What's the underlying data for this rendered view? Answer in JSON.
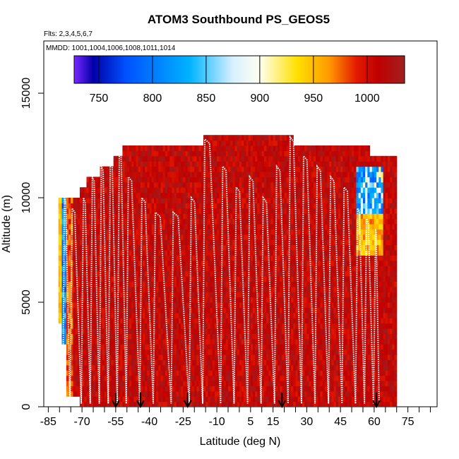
{
  "chart_data": {
    "type": "heatmap",
    "title": "ATOM3 Southbound PS_GEOS5",
    "flights_note": "Flts: 2,3,4,5,6,7",
    "dates_note": "MMDD: 1001,1004,1006,1008,1011,1014",
    "xlabel": "Latitude (deg N)",
    "ylabel": "Altitude (m)",
    "xlim": [
      -87,
      88
    ],
    "ylim": [
      0,
      17500
    ],
    "x_ticks": [
      -85,
      -70,
      -55,
      -40,
      -25,
      -10,
      5,
      15,
      30,
      45,
      60,
      75
    ],
    "x_minor_ticks": [
      -80,
      -75,
      -65,
      -60,
      -50,
      -45,
      -35,
      -30,
      -20,
      -15,
      -5,
      0,
      10,
      20,
      25,
      35,
      40,
      50,
      55,
      65,
      70,
      80,
      85
    ],
    "y_ticks": [
      0,
      5000,
      10000,
      15000
    ],
    "colorbar": {
      "range": [
        727,
        1035
      ],
      "ticks": [
        750,
        800,
        850,
        900,
        950,
        1000
      ],
      "colors": [
        "#7a28ff",
        "#0000a8",
        "#0050ff",
        "#00b4ff",
        "#d8f0ff",
        "#fffff0",
        "#ffe000",
        "#ff9800",
        "#e41a00",
        "#c00000",
        "#a02020"
      ],
      "color_stops": [
        727,
        745,
        775,
        835,
        875,
        900,
        935,
        965,
        990,
        1010,
        1035
      ]
    },
    "surface_pressure_columns": [
      {
        "lat0": -80.5,
        "lat1": -79,
        "z0": 4000,
        "z1": 10000,
        "kind": "edge"
      },
      {
        "lat0": -79,
        "lat1": -77,
        "z0": 3000,
        "z1": 10000,
        "kind": "blue"
      },
      {
        "lat0": -77,
        "lat1": -74,
        "z0": 500,
        "z1": 10000,
        "kind": "warm"
      },
      {
        "lat0": -74,
        "lat1": -71,
        "z0": 500,
        "z1": 10000,
        "kind": "red"
      },
      {
        "lat0": -71,
        "lat1": -68,
        "z0": 0,
        "z1": 10500,
        "kind": "red"
      },
      {
        "lat0": -68,
        "lat1": -62,
        "z0": 0,
        "z1": 11000,
        "kind": "red"
      },
      {
        "lat0": -62,
        "lat1": -56,
        "z0": 0,
        "z1": 11500,
        "kind": "red"
      },
      {
        "lat0": -56,
        "lat1": -52,
        "z0": 0,
        "z1": 12000,
        "kind": "red"
      },
      {
        "lat0": -52,
        "lat1": -16,
        "z0": 0,
        "z1": 12500,
        "kind": "red"
      },
      {
        "lat0": -16,
        "lat1": 24,
        "z0": 0,
        "z1": 13000,
        "kind": "red"
      },
      {
        "lat0": 24,
        "lat1": 52,
        "z0": 0,
        "z1": 12500,
        "kind": "red"
      },
      {
        "lat0": 52,
        "lat1": 58,
        "z0": 0,
        "z1": 12500,
        "kind": "mixed"
      },
      {
        "lat0": 58,
        "lat1": 64,
        "z0": 0,
        "z1": 12000,
        "kind": "mixed"
      },
      {
        "lat0": 64,
        "lat1": 70,
        "z0": 0,
        "z1": 12000,
        "kind": "red"
      }
    ],
    "profile_peaks_lat": [
      -78.5,
      -75,
      -70,
      -66,
      -62,
      -58,
      -54,
      -50,
      -44,
      -38,
      -30,
      -22,
      -16,
      -8,
      -2,
      4,
      10,
      16,
      22,
      28,
      34,
      40,
      46,
      52,
      56,
      60
    ],
    "profile_peaks_alt": [
      10000,
      9500,
      10000,
      11000,
      11500,
      12000,
      12200,
      11000,
      10000,
      9300,
      9300,
      10000,
      12800,
      11500,
      10500,
      11000,
      10000,
      11500,
      12900,
      12000,
      11500,
      11000,
      10500,
      9500,
      9000,
      8500
    ],
    "arrow_latitudes": [
      -55,
      -44,
      -23,
      19,
      61
    ]
  }
}
